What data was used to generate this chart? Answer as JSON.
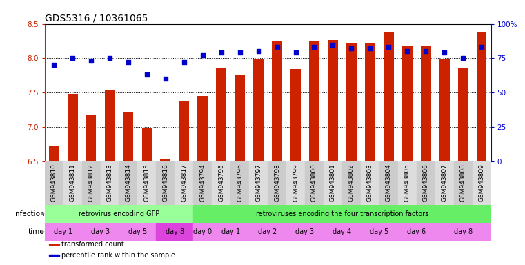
{
  "title": "GDS5316 / 10361065",
  "samples": [
    "GSM943810",
    "GSM943811",
    "GSM943812",
    "GSM943813",
    "GSM943814",
    "GSM943815",
    "GSM943816",
    "GSM943817",
    "GSM943794",
    "GSM943795",
    "GSM943796",
    "GSM943797",
    "GSM943798",
    "GSM943799",
    "GSM943800",
    "GSM943801",
    "GSM943802",
    "GSM943803",
    "GSM943804",
    "GSM943805",
    "GSM943806",
    "GSM943807",
    "GSM943808",
    "GSM943809"
  ],
  "transformed_count": [
    6.73,
    7.48,
    7.17,
    7.53,
    7.21,
    6.98,
    6.54,
    7.38,
    7.45,
    7.86,
    7.76,
    7.98,
    8.26,
    7.84,
    8.26,
    8.27,
    8.23,
    8.23,
    8.38,
    8.18,
    8.17,
    7.98,
    7.85,
    8.38
  ],
  "percentile_rank": [
    70,
    75,
    73,
    75,
    72,
    63,
    60,
    72,
    77,
    79,
    79,
    80,
    83,
    79,
    83,
    85,
    82,
    82,
    83,
    80,
    80,
    79,
    75,
    83
  ],
  "ylim_left": [
    6.5,
    8.5
  ],
  "ylim_right": [
    0,
    100
  ],
  "bar_color": "#cc2200",
  "marker_color": "#0000cc",
  "background_color": "#ffffff",
  "infection_groups": [
    {
      "label": "retrovirus encoding GFP",
      "start": 0,
      "end": 7,
      "color": "#99ff99"
    },
    {
      "label": "retroviruses encoding the four transcription factors",
      "start": 8,
      "end": 23,
      "color": "#66ee66"
    }
  ],
  "time_groups": [
    {
      "label": "day 1",
      "start": 0,
      "end": 1,
      "color": "#ee88ee"
    },
    {
      "label": "day 3",
      "start": 2,
      "end": 3,
      "color": "#ee88ee"
    },
    {
      "label": "day 5",
      "start": 4,
      "end": 5,
      "color": "#ee88ee"
    },
    {
      "label": "day 8",
      "start": 6,
      "end": 7,
      "color": "#dd44dd"
    },
    {
      "label": "day 0",
      "start": 8,
      "end": 8,
      "color": "#ee88ee"
    },
    {
      "label": "day 1",
      "start": 9,
      "end": 10,
      "color": "#ee88ee"
    },
    {
      "label": "day 2",
      "start": 11,
      "end": 12,
      "color": "#ee88ee"
    },
    {
      "label": "day 3",
      "start": 13,
      "end": 14,
      "color": "#ee88ee"
    },
    {
      "label": "day 4",
      "start": 15,
      "end": 16,
      "color": "#ee88ee"
    },
    {
      "label": "day 5",
      "start": 17,
      "end": 18,
      "color": "#ee88ee"
    },
    {
      "label": "day 6",
      "start": 19,
      "end": 20,
      "color": "#ee88ee"
    },
    {
      "label": "day 8",
      "start": 21,
      "end": 23,
      "color": "#ee88ee"
    }
  ],
  "gridline_color": "#000000",
  "tick_color_left": "#cc2200",
  "tick_color_right": "#0000cc",
  "label_color": "#888888",
  "title_fontsize": 10,
  "axis_fontsize": 7.5,
  "tick_fontsize": 6.5,
  "annotation_fontsize": 7,
  "label_row_fontsize": 7.5
}
